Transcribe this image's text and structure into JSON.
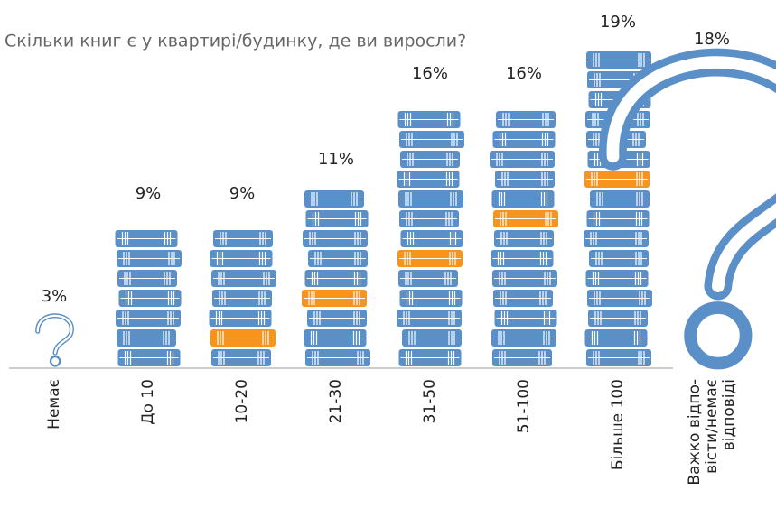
{
  "chart_data": {
    "type": "bar",
    "title": "Скільки книг є у квартирі/будинку, де ви виросли?",
    "categories": [
      "Немає",
      "До 10",
      "10-20",
      "21-30",
      "31-50",
      "51-100",
      "Більше 100",
      "Важко відпо-\nвісти/немає\nвідповіді"
    ],
    "values": [
      3,
      9,
      9,
      11,
      16,
      16,
      19,
      18
    ],
    "value_labels": [
      "3%",
      "9%",
      "9%",
      "11%",
      "16%",
      "16%",
      "19%",
      "18%"
    ],
    "color": "#5b8fc7"
  }
}
